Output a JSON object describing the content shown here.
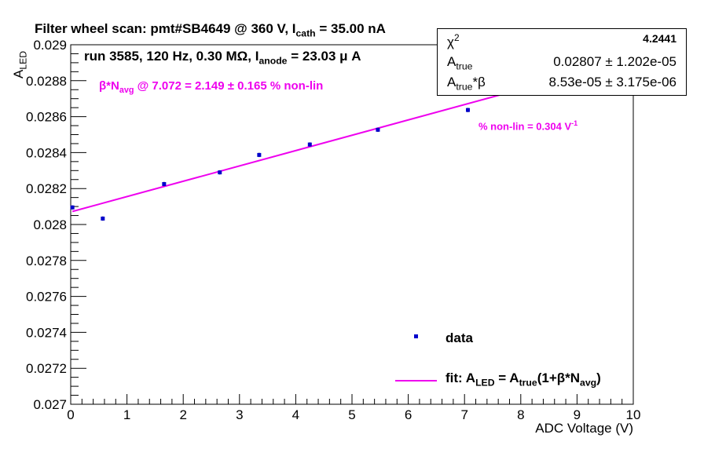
{
  "chart_data": {
    "type": "scatter",
    "title": {
      "prefix": "Filter wheel scan: pmt#SB4649 @   360 V, I",
      "sub": "cath",
      "suffix": " = 35.00 nA"
    },
    "run_info": {
      "prefix": "run 3585, 120 Hz, 0.30 MΩ, I",
      "sub": "anode",
      "suffix": " = 23.03 μ A"
    },
    "nonlin_annotation": {
      "prefix": "β*N",
      "sub": "avg",
      "suffix": " @ 7.072 = 2.149 ± 0.165 % non-lin"
    },
    "slope_annotation": {
      "prefix": "% non-lin = 0.304 V",
      "sup": "-1"
    },
    "xlabel": "ADC Voltage (V)",
    "ylabel": {
      "main": "A",
      "sub": "LED"
    },
    "xlim": [
      0,
      10
    ],
    "ylim": [
      0.027,
      0.029
    ],
    "x_ticks": [
      "0",
      "1",
      "2",
      "3",
      "4",
      "5",
      "6",
      "7",
      "8",
      "9",
      "10"
    ],
    "y_ticks": [
      "0.027",
      "0.0272",
      "0.0274",
      "0.0276",
      "0.0278",
      "0.028",
      "0.0282",
      "0.0284",
      "0.0286",
      "0.0288",
      "0.029"
    ],
    "grid": false,
    "series": [
      {
        "name": "data",
        "color": "#0000cc",
        "x": [
          0.03,
          0.57,
          1.66,
          2.65,
          3.35,
          4.25,
          5.46,
          7.06
        ],
        "y": [
          0.028095,
          0.028033,
          0.028225,
          0.02829,
          0.028387,
          0.028445,
          0.028527,
          0.028637
        ],
        "yerr": [
          1.2e-05,
          1.2e-05,
          1.2e-05,
          1.2e-05,
          1.2e-05,
          1.2e-05,
          1.2e-05,
          1.2e-05
        ]
      }
    ],
    "fit": {
      "color": "#ee00ee",
      "x_range": [
        0.03,
        7.62
      ],
      "intercept": 0.02807,
      "slope": 8.53e-05
    },
    "legend": {
      "placement": "bottom-right",
      "data_label": "data",
      "fit_label": {
        "a": "fit: A",
        "a_sub": "LED",
        "b": " = A",
        "b_sub": "true",
        "c": "(1+β*N",
        "c_sub": "avg",
        "d": ")"
      }
    },
    "stats_box": {
      "rows": [
        {
          "label": "χ",
          "label_sup": "2",
          "label_sub": "",
          "value": "4.2441"
        },
        {
          "label": "A",
          "label_sup": "",
          "label_sub": "true",
          "value": "0.02807 ± 1.202e-05"
        },
        {
          "label": "A",
          "label_sup": "",
          "label_sub": "true",
          "label_suffix": "*β",
          "value": "8.53e-05 ± 3.175e-06"
        }
      ]
    }
  }
}
